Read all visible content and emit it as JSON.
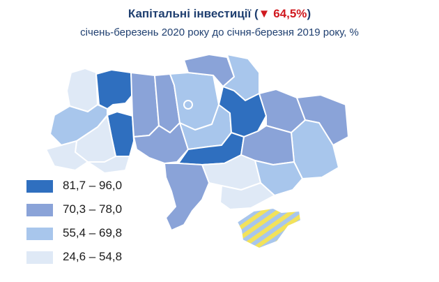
{
  "header": {
    "title_prefix": "Капітальні інвестиції (",
    "title_change": "▼ 64,5%",
    "title_suffix": ")",
    "subtitle": "січень-березень 2020 року до січня-березня 2019 року, %"
  },
  "legend": [
    {
      "label": "81,7 – 96,0",
      "color": "#2f6fbf"
    },
    {
      "label": "70,3 – 78,0",
      "color": "#8aa3d8"
    },
    {
      "label": "55,4 – 69,8",
      "color": "#a8c6ec"
    },
    {
      "label": "24,6 – 54,8",
      "color": "#dfe9f6"
    }
  ],
  "colors": {
    "title": "#1f3f70",
    "decline": "#d0191f",
    "border": "#ffffff",
    "hatch_yellow": "#f2e25b",
    "hatch_blue": "#a8c6ec"
  }
}
